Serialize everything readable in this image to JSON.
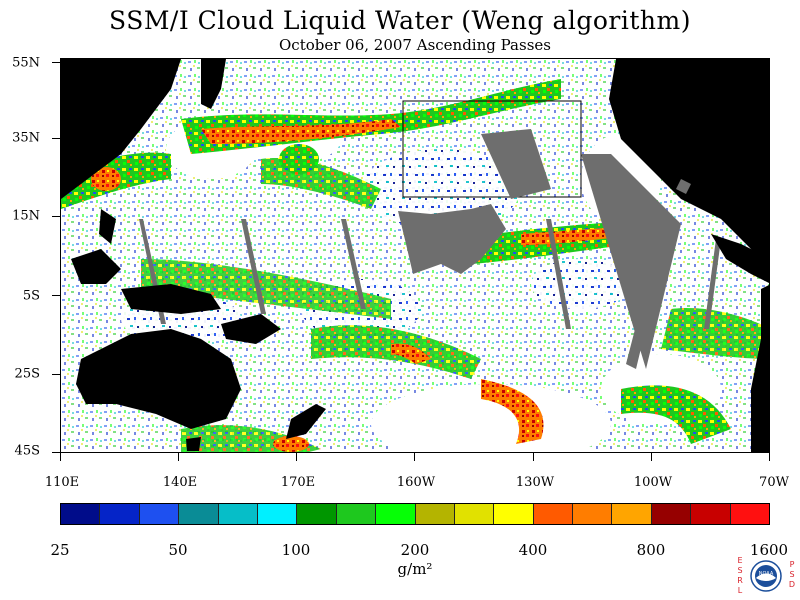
{
  "title": "SSM/I Cloud Liquid Water (Weng algorithm)",
  "subtitle": "October 06, 2007  Ascending Passes",
  "map": {
    "lat_labels": [
      "55N",
      "35N",
      "15N",
      "5S",
      "25S",
      "45S"
    ],
    "lon_labels": [
      "110E",
      "140E",
      "170E",
      "160W",
      "130W",
      "100W",
      "70W"
    ]
  },
  "legend": {
    "colors": [
      "#000c8a",
      "#0524c8",
      "#1e50f0",
      "#0a8c96",
      "#06bec8",
      "#00f0ff",
      "#009600",
      "#1ec81e",
      "#06ff06",
      "#b4b400",
      "#e1e100",
      "#ffff00",
      "#ff5a00",
      "#ff7d00",
      "#ffa500",
      "#960000",
      "#c80000",
      "#ff1010"
    ],
    "labels": [
      "25",
      "50",
      "100",
      "200",
      "400",
      "800",
      "1600"
    ],
    "units": "g/m²"
  },
  "colors": {
    "land": "#000000",
    "missing_data": "#6e6e6e",
    "clear": "#ffffff",
    "logo_text": "#d9222b",
    "logo_disk": "#1b4e9b"
  },
  "logo": {
    "left_letters": "ESRL",
    "right_letters": "PSD",
    "emblem": "NOAA"
  }
}
